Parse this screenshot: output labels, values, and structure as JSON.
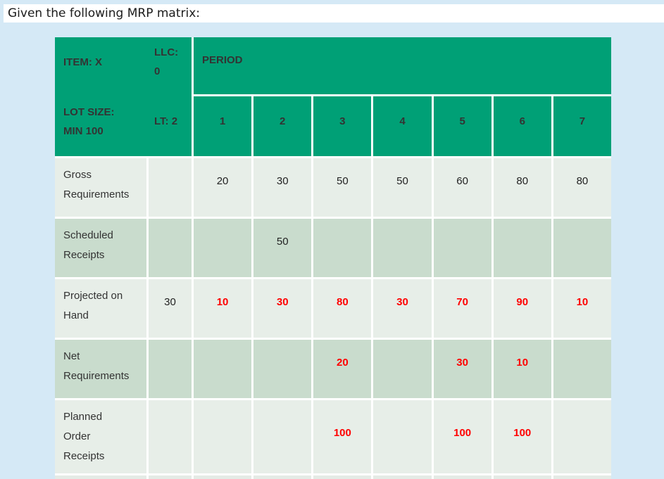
{
  "colors": {
    "page_bg": "#d5e9f6",
    "header_green": "#00a076",
    "row_light": "#e7eee8",
    "row_dark": "#c9dccd",
    "partial_row": "#e4ebe5",
    "grid_line": "#ffffff",
    "red_value": "#ff0000"
  },
  "title": "Given the following MRP matrix:",
  "table": {
    "header": {
      "item": "ITEM: X",
      "llc": "LLC:\n0",
      "lot_size": "LOT SIZE:\nMIN 100",
      "lt": "LT: 2",
      "period_label": "PERIOD",
      "periods": [
        "1",
        "2",
        "3",
        "4",
        "5",
        "6",
        "7"
      ]
    },
    "rows": [
      {
        "label": "Gross\nRequirements",
        "initial": "",
        "values": [
          "20",
          "30",
          "50",
          "50",
          "60",
          "80",
          "80"
        ]
      },
      {
        "label": "Scheduled\nReceipts",
        "initial": "",
        "values": [
          "",
          "50",
          "",
          "",
          "",
          "",
          ""
        ]
      },
      {
        "label": "Projected on\nHand",
        "initial": "30",
        "values": [
          "10",
          "30",
          "80",
          "30",
          "70",
          "90",
          "10"
        ]
      },
      {
        "label": "Net\nRequirements",
        "initial": "",
        "values": [
          "",
          "",
          "20",
          "",
          "30",
          "10",
          ""
        ]
      },
      {
        "label": "Planned\nOrder\nReceipts",
        "initial": "",
        "values": [
          "",
          "",
          "100",
          "",
          "100",
          "100",
          ""
        ]
      }
    ]
  }
}
